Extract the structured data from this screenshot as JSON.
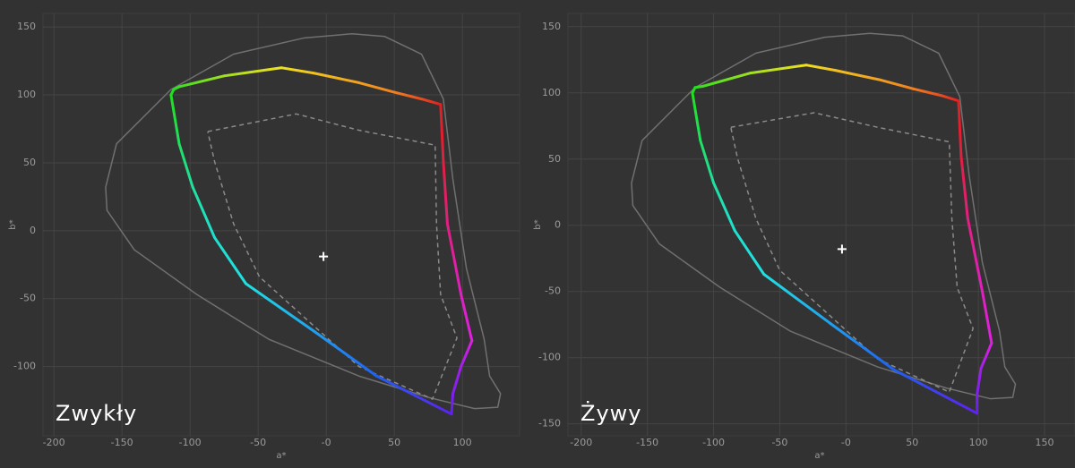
{
  "chart_data": [
    {
      "type": "line",
      "label": "Zwykły",
      "xlabel": "a*",
      "ylabel": "b*",
      "xlim": [
        -208,
        142
      ],
      "ylim": [
        -151,
        160
      ],
      "xticks": [
        -200,
        -150,
        -100,
        -50,
        {
          "value": 0,
          "label": "-0"
        },
        50,
        100
      ],
      "yticks": [
        150,
        100,
        50,
        0,
        -50,
        -100
      ],
      "grid": true,
      "series": [
        {
          "color": "#707070",
          "style": "solid",
          "x": [
            19,
            -16,
            -68,
            -114,
            -154,
            -162,
            -161,
            -141,
            -95,
            -42,
            24,
            76,
            109,
            126,
            128,
            120,
            116,
            103,
            93,
            86,
            70,
            43,
            19
          ],
          "values": [
            145,
            142,
            130,
            104,
            64,
            32,
            15,
            -14,
            -47,
            -80,
            -107,
            -123,
            -131,
            -130,
            -120,
            -107,
            -80,
            -28,
            38,
            97,
            130,
            143,
            145
          ]
        },
        {
          "color": "#8a8a8a",
          "style": "dashed",
          "x": [
            -87,
            -22,
            24,
            80,
            81,
            84,
            96,
            78,
            24,
            -49,
            -68,
            -82,
            -87
          ],
          "values": [
            73,
            86,
            74,
            63,
            5,
            -47,
            -79,
            -124,
            -100,
            -34,
            5,
            51,
            73
          ]
        },
        {
          "style": "gradient",
          "x": [
            84,
            70,
            50,
            24,
            -9,
            -33,
            -75,
            -108,
            -112,
            -114,
            -108,
            -98,
            -82,
            -59,
            -9,
            37,
            92,
            93,
            99,
            107,
            99,
            89,
            86,
            84
          ],
          "values": [
            93,
            97,
            102,
            109,
            116,
            120,
            114,
            106,
            104,
            100,
            64,
            32,
            -5,
            -39,
            -74,
            -107,
            -135,
            -120,
            -100,
            -81,
            -47,
            5,
            51,
            93
          ],
          "colors": [
            "#e02020",
            "#e84a20",
            "#f08020",
            "#f0a020",
            "#f0c020",
            "#f0e020",
            "#a0e020",
            "#40e020",
            "#20e020",
            "#20e020",
            "#20e060",
            "#20e0a0",
            "#20e0d0",
            "#20e0e0",
            "#20a0f0",
            "#2060f0",
            "#6020f0",
            "#8020f0",
            "#a020e8",
            "#e020e0",
            "#e020c0",
            "#e02080",
            "#e02040",
            "#e02020"
          ]
        },
        {
          "color": "#ffffff",
          "style": "plus",
          "x": [
            -2
          ],
          "values": [
            -19
          ]
        }
      ]
    },
    {
      "type": "line",
      "label": "Żywy",
      "xlabel": "a*",
      "ylabel": "b*",
      "xlim": [
        -210,
        173
      ],
      "ylim": [
        -159,
        160
      ],
      "xticks": [
        -200,
        -150,
        -100,
        -50,
        {
          "value": 0,
          "label": "-0"
        },
        50,
        100,
        150
      ],
      "yticks": [
        150,
        100,
        50,
        0,
        -50,
        -100,
        -150
      ],
      "grid": true,
      "series": [
        {
          "color": "#707070",
          "style": "solid",
          "x": [
            18,
            -16,
            -68,
            -114,
            -154,
            -162,
            -161,
            -141,
            -95,
            -42,
            24,
            76,
            109,
            126,
            128,
            120,
            116,
            103,
            93,
            86,
            70,
            43,
            18
          ],
          "values": [
            145,
            142,
            130,
            104,
            64,
            32,
            15,
            -14,
            -47,
            -80,
            -107,
            -123,
            -131,
            -130,
            -120,
            -107,
            -80,
            -28,
            38,
            97,
            130,
            143,
            145
          ]
        },
        {
          "color": "#8a8a8a",
          "style": "dashed",
          "x": [
            -87,
            -24,
            24,
            78,
            80,
            84,
            96,
            78,
            24,
            -50,
            -68,
            -82,
            -87
          ],
          "values": [
            74,
            85,
            74,
            63,
            5,
            -47,
            -78,
            -126,
            -101,
            -34,
            5,
            51,
            74
          ]
        },
        {
          "style": "gradient",
          "x": [
            85,
            72,
            51,
            25,
            -8,
            -30,
            -72,
            -108,
            -114,
            -116,
            -110,
            -100,
            -84,
            -62,
            -12,
            36,
            99,
            99,
            102,
            110,
            103,
            92,
            87,
            85
          ],
          "values": [
            94,
            98,
            103,
            110,
            117,
            121,
            115,
            105,
            104,
            100,
            64,
            32,
            -4,
            -37,
            -74,
            -109,
            -142,
            -128,
            -108,
            -89,
            -50,
            5,
            52,
            94
          ],
          "colors": [
            "#e02020",
            "#e84a20",
            "#f08020",
            "#f0a020",
            "#f0c020",
            "#f0e020",
            "#a0e020",
            "#40e020",
            "#20e020",
            "#20e020",
            "#20e060",
            "#20e0a0",
            "#20e0d0",
            "#20e0e0",
            "#20a0f0",
            "#2060f0",
            "#6020f0",
            "#8020f0",
            "#a020e8",
            "#e020e0",
            "#e020c0",
            "#e02080",
            "#e02040",
            "#e02020"
          ]
        },
        {
          "color": "#ffffff",
          "style": "plus",
          "x": [
            -3
          ],
          "values": [
            -18
          ]
        }
      ]
    }
  ]
}
